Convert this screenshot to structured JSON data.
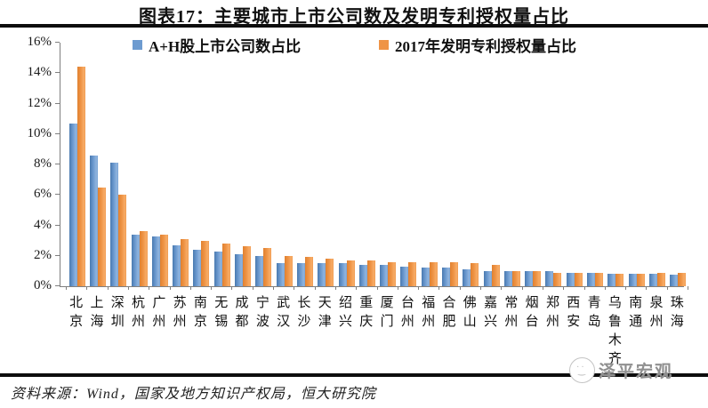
{
  "page": {
    "title": "图表17：主要城市上市公司数及发明专利授权量占比",
    "source_note": "资料来源：Wind，国家及地方知识产权局，恒大研究院",
    "watermark": "泽平宏观"
  },
  "chart_data": {
    "type": "bar",
    "title": "图表17：主要城市上市公司数及发明专利授权量占比",
    "categories": [
      "北京",
      "上海",
      "深圳",
      "杭州",
      "广州",
      "苏州",
      "南京",
      "无锡",
      "成都",
      "宁波",
      "武汉",
      "长沙",
      "天津",
      "绍兴",
      "重庆",
      "厦门",
      "台州",
      "福州",
      "合肥",
      "佛山",
      "嘉兴",
      "常州",
      "烟台",
      "郑州",
      "西安",
      "青岛",
      "乌鲁木齐",
      "南通",
      "泉州",
      "珠海"
    ],
    "series": [
      {
        "name": "A+H股上市公司数占比",
        "color": "#6d9bd0",
        "values": [
          10.7,
          8.6,
          8.1,
          3.4,
          3.3,
          2.7,
          2.4,
          2.3,
          2.1,
          2.0,
          1.5,
          1.5,
          1.5,
          1.5,
          1.4,
          1.4,
          1.3,
          1.2,
          1.2,
          1.1,
          1.0,
          1.0,
          1.0,
          1.0,
          0.9,
          0.9,
          0.8,
          0.8,
          0.8,
          0.75
        ]
      },
      {
        "name": "2017年发明专利授权量占比",
        "color": "#ef9446",
        "values": [
          14.4,
          6.5,
          6.0,
          3.6,
          3.4,
          3.1,
          3.0,
          2.8,
          2.6,
          2.5,
          2.0,
          1.9,
          1.8,
          1.7,
          1.7,
          1.6,
          1.6,
          1.6,
          1.6,
          1.5,
          1.4,
          1.0,
          1.0,
          0.9,
          0.9,
          0.9,
          0.8,
          0.8,
          0.85,
          0.85
        ]
      }
    ],
    "ylim": [
      0,
      16
    ],
    "ytick_step": 2,
    "ytick_labels": [
      "0%",
      "2%",
      "4%",
      "6%",
      "8%",
      "10%",
      "12%",
      "14%",
      "16%"
    ],
    "grid": false,
    "legend_position": "top",
    "axis_color": "#7f7f7f"
  }
}
